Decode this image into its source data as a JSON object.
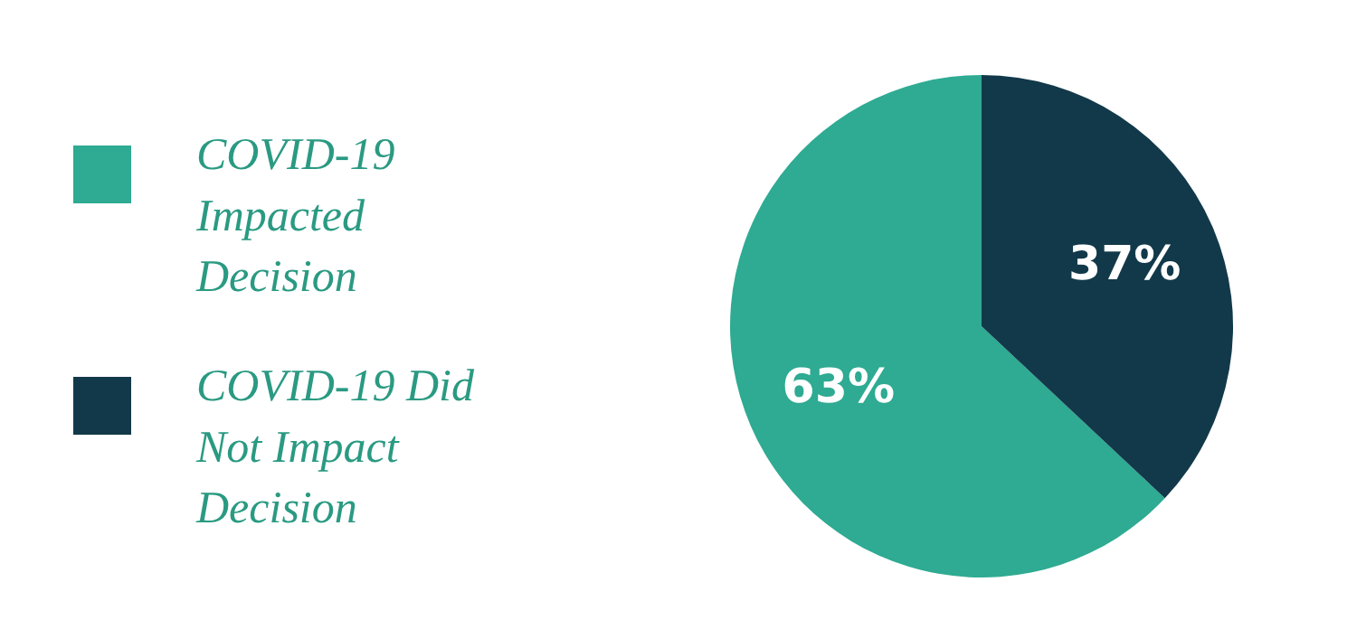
{
  "chart_data": {
    "type": "pie",
    "categories": [
      "COVID-19 Impacted Decision",
      "COVID-19 Did Not Impact Decision"
    ],
    "values": [
      63,
      37
    ],
    "colors": [
      "#2eab92",
      "#12394a"
    ],
    "value_labels": [
      "63%",
      "37%"
    ],
    "legend": "left"
  }
}
